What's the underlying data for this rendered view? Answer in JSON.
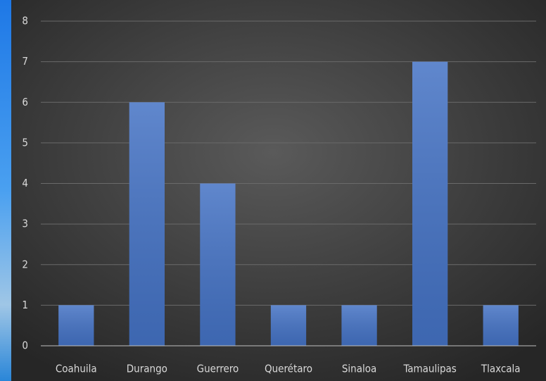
{
  "chart_data": {
    "type": "bar",
    "categories": [
      "Coahuila",
      "Durango",
      "Guerrero",
      "Querétaro",
      "Sinaloa",
      "Tamaulipas",
      "Tlaxcala"
    ],
    "values": [
      1,
      6,
      4,
      1,
      1,
      7,
      1
    ],
    "color": "#4472c4",
    "ylim": [
      0,
      8
    ],
    "yticks": [
      0,
      1,
      2,
      3,
      4,
      5,
      6,
      7,
      8
    ],
    "grid": true
  }
}
